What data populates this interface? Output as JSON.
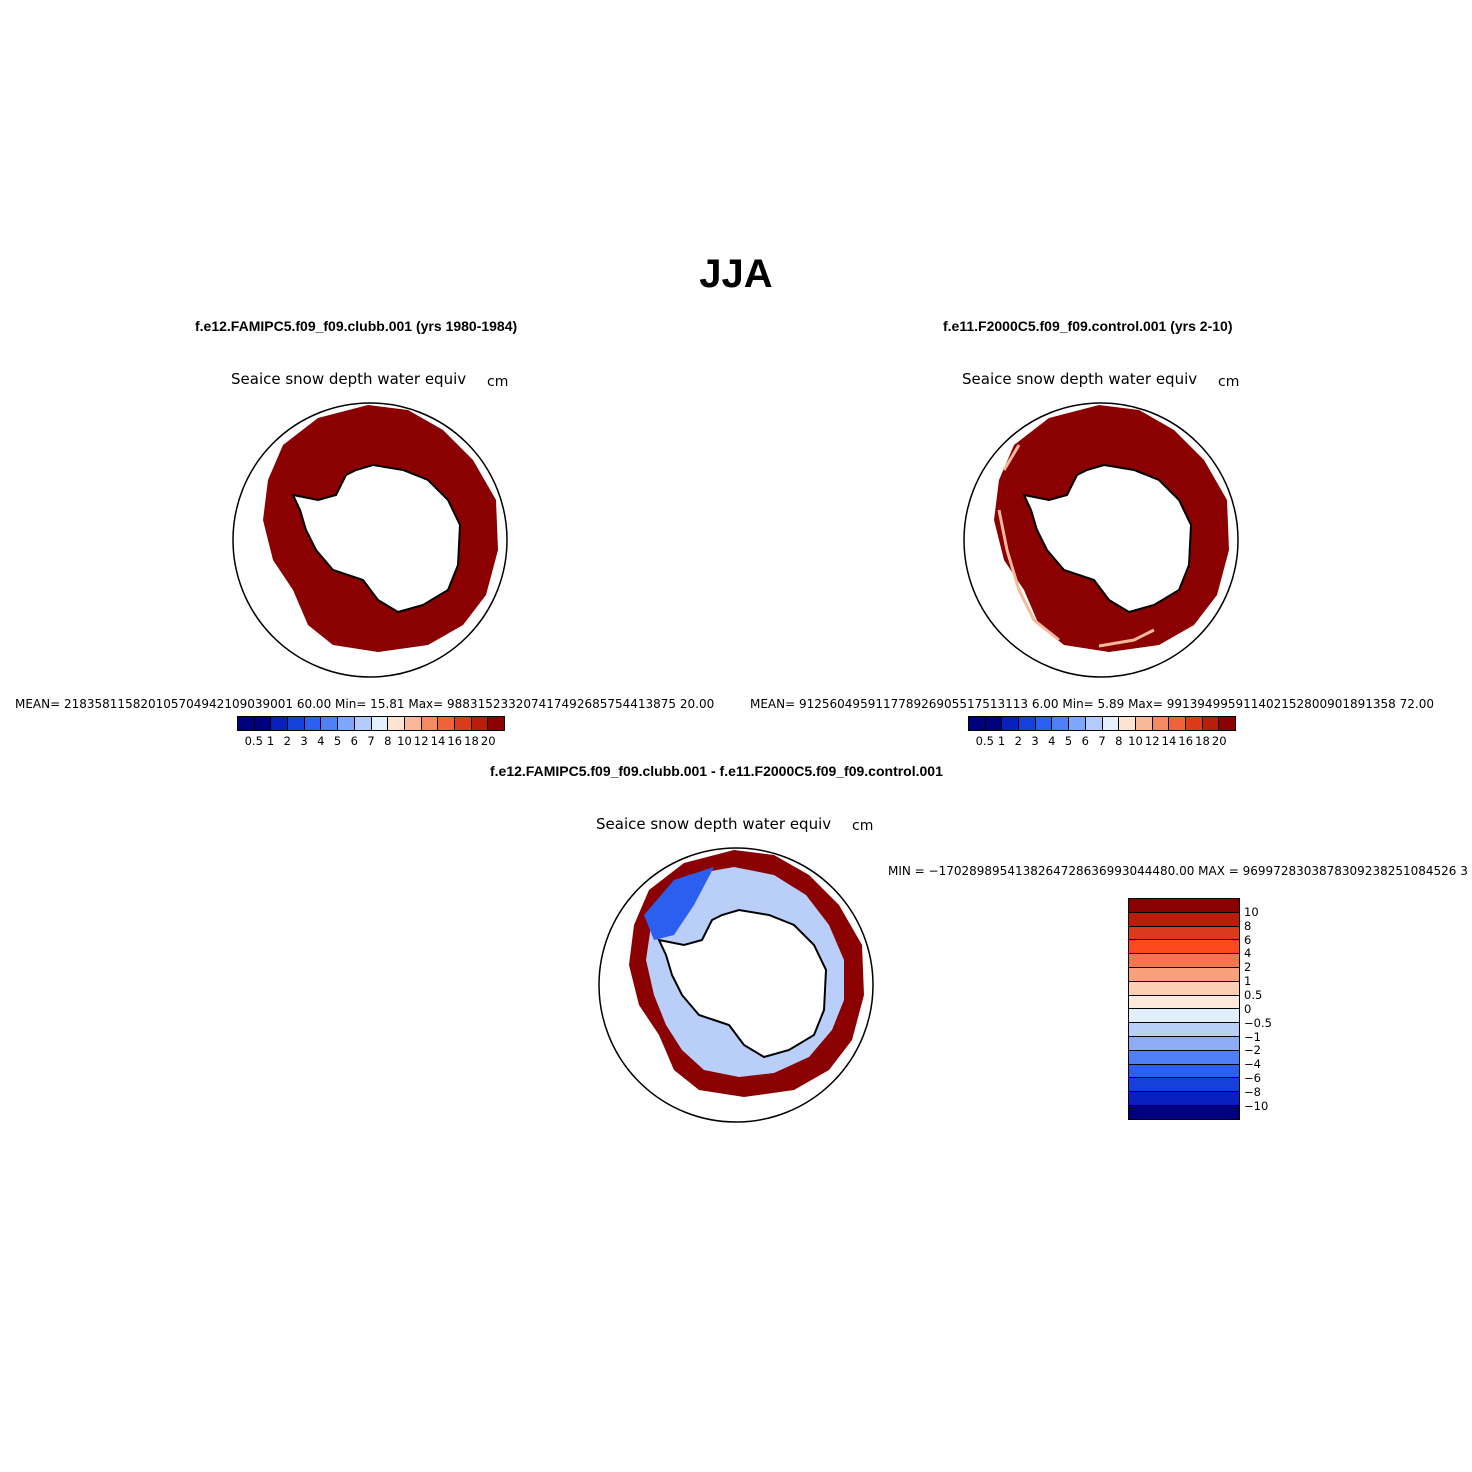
{
  "title": "JJA",
  "panels": [
    {
      "case": "f.e12.FAMIPC5.f09_f09.clubb.001 (yrs 1980-1984)",
      "variable": "Seaice snow depth water equiv",
      "units": "cm",
      "stats": "MEAN= 218358115820105704942109039001 60.00   Min=   15.81   Max= 988315233207417492685754413875 20.00"
    },
    {
      "case": "f.e11.F2000C5.f09_f09.control.001 (yrs 2-10)",
      "variable": "Seaice snow depth water equiv",
      "units": "cm",
      "stats": "MEAN= 912560495911778926905517513113 6.00   Min=    5.89   Max= 991394995911402152800901891358 72.00"
    },
    {
      "case": "f.e12.FAMIPC5.f09_f09.clubb.001 - f.e11.F2000C5.f09_f09.control.001",
      "variable": "Seaice snow depth water equiv",
      "units": "cm",
      "stats": "MIN = −1702898954138264728636993044480.00  MAX = 9699728303878309238251084526 3"
    }
  ],
  "colorbar_top": {
    "labels": [
      "0.5",
      "1",
      "2",
      "3",
      "4",
      "5",
      "6",
      "7",
      "8",
      "10",
      "12",
      "14",
      "16",
      "18",
      "20"
    ],
    "colors": [
      "#00007f",
      "#0a1fbf",
      "#1540d9",
      "#2a5ff0",
      "#4f7ff7",
      "#7ea7f9",
      "#b3ccfb",
      "#e4f0fd",
      "#fde4d0",
      "#f7b99a",
      "#f48a62",
      "#f0623a",
      "#db3a1b",
      "#b81e0b",
      "#8b0000"
    ]
  },
  "colorbar_diff": {
    "labels": [
      "10",
      "8",
      "6",
      "4",
      "2",
      "1",
      "0.5",
      "0",
      "−0.5",
      "−1",
      "−2",
      "−4",
      "−6",
      "−8",
      "−10"
    ],
    "colors": [
      "#8b0000",
      "#b81e0b",
      "#db3a1b",
      "#fa4a1e",
      "#f4764a",
      "#f7a07a",
      "#fbcdb3",
      "#fdeadc",
      "#e1eefc",
      "#b9cffa",
      "#8eabf6",
      "#4f7ff7",
      "#2a5ff0",
      "#1540d9",
      "#0a1fbf",
      "#00007f"
    ]
  }
}
